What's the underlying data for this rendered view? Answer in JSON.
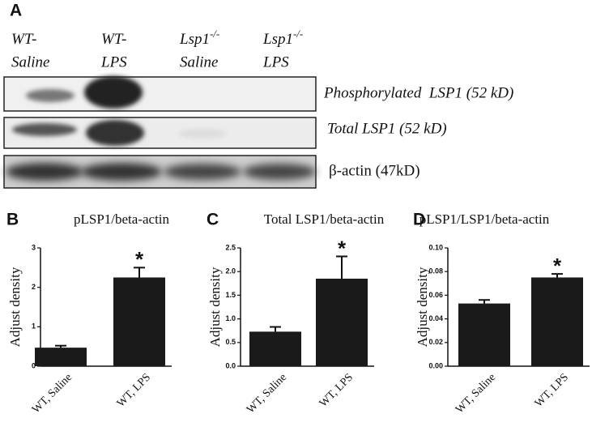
{
  "panel_a": {
    "label": "A",
    "lanes": [
      {
        "genotype": "WT-",
        "condition": "Saline"
      },
      {
        "genotype": "WT-",
        "condition": "LPS"
      },
      {
        "genotype": "Lsp1",
        "superscript": "-/-",
        "condition": "Saline"
      },
      {
        "genotype": "Lsp1",
        "superscript": "-/-",
        "condition": "LPS"
      }
    ],
    "bands": [
      "Phosphorylated  LSP1 (52 kD)",
      "Total LSP1 (52 kD)",
      "β-actin (47kD)"
    ]
  },
  "chart_data": [
    {
      "type": "bar",
      "panel": "B",
      "title": "pLSP1/beta-actin",
      "y_label": "Adjust density",
      "categories": [
        "WT, Saline",
        "WT, LPS"
      ],
      "values": [
        0.47,
        2.25
      ],
      "errors": [
        0.05,
        0.25
      ],
      "color": "#1a1a1a",
      "ylim": [
        0,
        3
      ],
      "yticks": [
        0,
        1,
        2,
        3
      ],
      "annotation": "*"
    },
    {
      "type": "bar",
      "panel": "C",
      "title": "Total LSP1/beta-actin",
      "y_label": "Adjust density",
      "categories": [
        "WT, Saline",
        "WT, LPS"
      ],
      "values": [
        0.73,
        1.85
      ],
      "errors": [
        0.1,
        0.47
      ],
      "color": "#1a1a1a",
      "ylim": [
        0,
        2.5
      ],
      "yticks": [
        {
          "value": 0,
          "label": "0.0"
        },
        0.5,
        {
          "value": 1,
          "label": "1.0"
        },
        1.5,
        {
          "value": 2,
          "label": "2.0"
        },
        2.5
      ],
      "annotation": "*"
    },
    {
      "type": "bar",
      "panel": "D",
      "title": "pLSP1/LSP1/beta-actin",
      "y_label": "Adjust density",
      "categories": [
        "WT, Saline",
        "WT, LPS"
      ],
      "values": [
        0.053,
        0.075
      ],
      "errors": [
        0.003,
        0.003
      ],
      "color": "#1a1a1a",
      "ylim": [
        0,
        0.1
      ],
      "yticks": [
        {
          "value": 0,
          "label": "0.00"
        },
        {
          "value": 0.02,
          "label": "0.02"
        },
        {
          "value": 0.04,
          "label": "0.04"
        },
        {
          "value": 0.06,
          "label": "0.06"
        },
        {
          "value": 0.08,
          "label": "0.08"
        },
        {
          "value": 0.1,
          "label": "0.10"
        }
      ],
      "annotation": "*"
    }
  ]
}
